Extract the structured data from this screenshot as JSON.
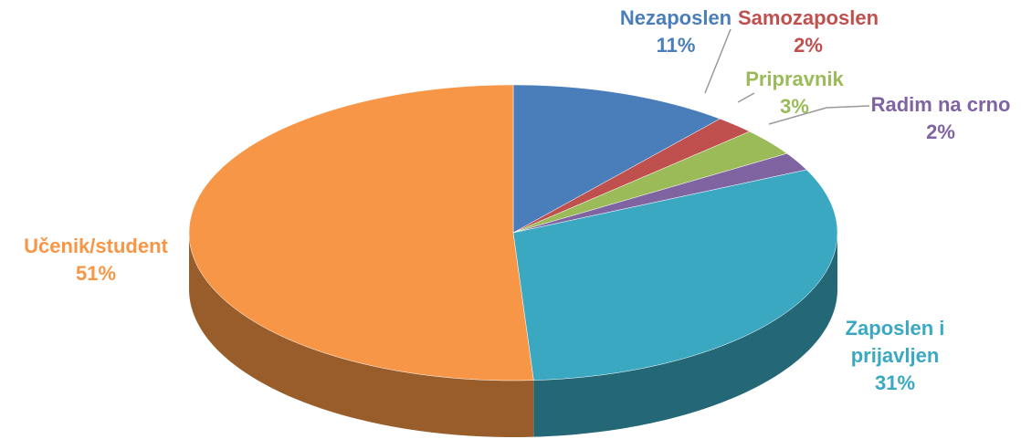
{
  "chart_data": {
    "type": "pie",
    "categories": [
      "Nezaposlen",
      "Samozaposlen",
      "Pripravnik",
      "Radim na crno",
      "Zaposlen i prijavljen",
      "Učenik/student"
    ],
    "values": [
      11,
      2,
      3,
      2,
      31,
      51
    ],
    "value_labels": [
      "11%",
      "2%",
      "3%",
      "2%",
      "31%",
      "51%"
    ],
    "colors": [
      "#4a7ebb",
      "#c0504d",
      "#9bbb59",
      "#8064a2",
      "#3aa8c1",
      "#f79646"
    ]
  }
}
